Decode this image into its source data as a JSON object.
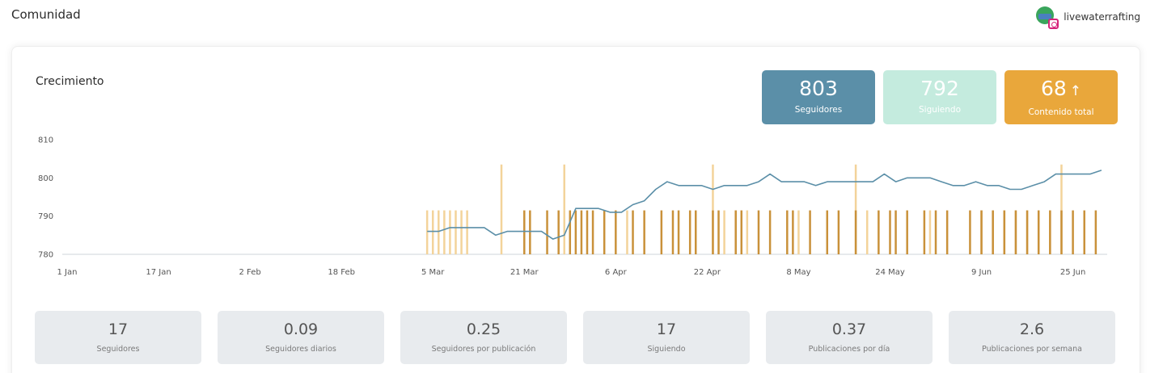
{
  "header": {
    "title": "Comunidad",
    "account_name": "livewaterrafting",
    "account_icon": "instagram-icon"
  },
  "card": {
    "title": "Crecimiento"
  },
  "kpis": {
    "followers": {
      "value": "803",
      "label": "Seguidores",
      "color": "#5b8fa8"
    },
    "following": {
      "value": "792",
      "label": "Siguiendo",
      "color": "#c4ebde"
    },
    "content": {
      "value": "68",
      "label": "Contenido total",
      "color": "#e9a73b",
      "trend_icon": "arrow-up-icon"
    }
  },
  "stats": [
    {
      "value": "17",
      "label": "Seguidores"
    },
    {
      "value": "0.09",
      "label": "Seguidores diarios"
    },
    {
      "value": "0.25",
      "label": "Seguidores por publicación"
    },
    {
      "value": "17",
      "label": "Siguiendo"
    },
    {
      "value": "0.37",
      "label": "Publicaciones por día"
    },
    {
      "value": "2.6",
      "label": "Publicaciones por semana"
    }
  ],
  "chart_data": {
    "type": "line",
    "title": "Crecimiento",
    "x_tick_labels": [
      "1 Jan",
      "17 Jan",
      "2 Feb",
      "18 Feb",
      "5 Mar",
      "21 Mar",
      "6 Apr",
      "22 Apr",
      "8 May",
      "24 May",
      "9 Jun",
      "25 Jun"
    ],
    "y_ticks": [
      780,
      790,
      800,
      810
    ],
    "ylim": [
      780,
      810
    ],
    "x_range_days": [
      0,
      182
    ],
    "series": [
      {
        "name": "Seguidores",
        "kind": "line",
        "color": "#5b8fa8",
        "days": [
          63,
          65,
          67,
          69,
          71,
          73,
          75,
          77,
          79,
          81,
          83,
          85,
          87,
          89,
          91,
          93,
          95,
          96,
          97,
          99,
          101,
          103,
          105,
          107,
          109,
          111,
          113,
          115,
          117,
          119,
          121,
          123,
          125,
          126,
          127,
          129,
          131,
          133,
          135,
          137,
          139,
          141,
          143,
          145,
          147,
          149,
          151,
          153,
          155,
          157,
          159,
          161,
          163,
          165,
          167,
          169,
          171,
          173,
          175,
          177,
          179,
          181
        ],
        "values": [
          786,
          786,
          787,
          787,
          787,
          787,
          785,
          786,
          786,
          786,
          786,
          784,
          785,
          792,
          792,
          792,
          791,
          791,
          791,
          793,
          794,
          797,
          799,
          798,
          798,
          798,
          797,
          798,
          798,
          798,
          799,
          801,
          799,
          799,
          799,
          799,
          798,
          799,
          799,
          799,
          799,
          799,
          801,
          799,
          800,
          800,
          800,
          799,
          798,
          798,
          799,
          798,
          798,
          797,
          797,
          798,
          799,
          801,
          801,
          801,
          801,
          802
        ]
      },
      {
        "name": "Contenido",
        "kind": "markers",
        "light_color": "#f3d39a",
        "dark_color": "#c9913a",
        "light_days": [
          63,
          64,
          65,
          66,
          67,
          68,
          69,
          70,
          76,
          87,
          98,
          113,
          115,
          117,
          119,
          128,
          138,
          140,
          151,
          160,
          162,
          164,
          166,
          168,
          170,
          172,
          174
        ],
        "dark_days": [
          80,
          81,
          84,
          86,
          88,
          89,
          90,
          91,
          92,
          94,
          96,
          99,
          101,
          104,
          106,
          107,
          109,
          110,
          113,
          114,
          117,
          118,
          121,
          123,
          126,
          127,
          130,
          133,
          135,
          138,
          142,
          144,
          145,
          147,
          150,
          152,
          154,
          158,
          160,
          162,
          164,
          166,
          168,
          170,
          172,
          174,
          176,
          178,
          180
        ]
      }
    ]
  }
}
